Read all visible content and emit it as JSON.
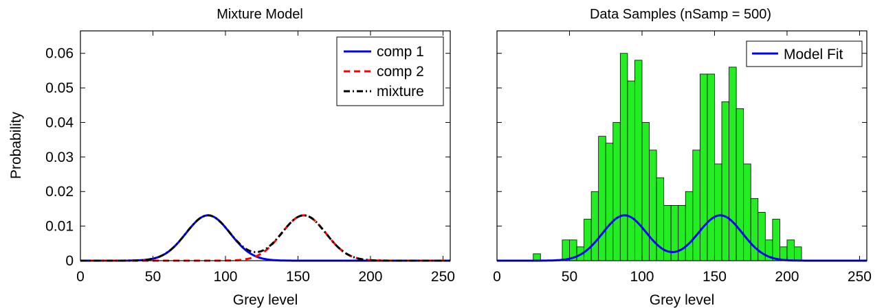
{
  "chart_data": [
    {
      "type": "line",
      "title": "Mixture Model",
      "xlabel": "Grey level",
      "ylabel": "Probability",
      "xlim": [
        0,
        255
      ],
      "ylim": [
        0,
        0.0665
      ],
      "xticks": [
        0,
        50,
        100,
        150,
        200,
        250
      ],
      "yticks": [
        0,
        0.01,
        0.02,
        0.03,
        0.04,
        0.05,
        0.06
      ],
      "ytick_labels": [
        "0",
        "0.01",
        "0.02",
        "0.03",
        "0.04",
        "0.05",
        "0.06"
      ],
      "legend": "top-right",
      "grid": false,
      "series": [
        {
          "name": "comp 1",
          "color": "#0000ff",
          "style": "solid",
          "component": {
            "weight": 1,
            "mean": 88,
            "sd": 15.2
          }
        },
        {
          "name": "comp 2",
          "color": "#ff0000",
          "style": "dashed",
          "component": {
            "weight": 1,
            "mean": 154,
            "sd": 15.2
          }
        },
        {
          "name": "mixture",
          "color": "#000000",
          "style": "dashdot",
          "mixture_of": [
            0,
            1
          ]
        }
      ]
    },
    {
      "type": "bar",
      "title": "Data Samples  (nSamp = 500)",
      "xlabel": "Grey level",
      "ylabel": "",
      "xlim": [
        0,
        255
      ],
      "ylim": [
        0,
        0.0665
      ],
      "xticks": [
        0,
        50,
        100,
        150,
        200,
        250
      ],
      "legend": "top-right",
      "grid": false,
      "histogram": {
        "color": "#22ee22",
        "bins": [
          {
            "x0": 25,
            "x1": 30,
            "y": 0.002
          },
          {
            "x0": 45,
            "x1": 50,
            "y": 0.006
          },
          {
            "x0": 50,
            "x1": 55,
            "y": 0.006
          },
          {
            "x0": 55,
            "x1": 60,
            "y": 0.004
          },
          {
            "x0": 60,
            "x1": 65,
            "y": 0.012
          },
          {
            "x0": 65,
            "x1": 70,
            "y": 0.02
          },
          {
            "x0": 70,
            "x1": 75,
            "y": 0.036
          },
          {
            "x0": 75,
            "x1": 80,
            "y": 0.034
          },
          {
            "x0": 80,
            "x1": 85,
            "y": 0.04
          },
          {
            "x0": 85,
            "x1": 90,
            "y": 0.06
          },
          {
            "x0": 90,
            "x1": 95,
            "y": 0.052
          },
          {
            "x0": 95,
            "x1": 100,
            "y": 0.058
          },
          {
            "x0": 100,
            "x1": 105,
            "y": 0.04
          },
          {
            "x0": 105,
            "x1": 110,
            "y": 0.032
          },
          {
            "x0": 110,
            "x1": 115,
            "y": 0.024
          },
          {
            "x0": 115,
            "x1": 120,
            "y": 0.016
          },
          {
            "x0": 120,
            "x1": 125,
            "y": 0.016
          },
          {
            "x0": 125,
            "x1": 130,
            "y": 0.016
          },
          {
            "x0": 130,
            "x1": 135,
            "y": 0.02
          },
          {
            "x0": 135,
            "x1": 140,
            "y": 0.032
          },
          {
            "x0": 140,
            "x1": 145,
            "y": 0.054
          },
          {
            "x0": 145,
            "x1": 150,
            "y": 0.054
          },
          {
            "x0": 150,
            "x1": 155,
            "y": 0.028
          },
          {
            "x0": 155,
            "x1": 160,
            "y": 0.046
          },
          {
            "x0": 160,
            "x1": 165,
            "y": 0.056
          },
          {
            "x0": 165,
            "x1": 170,
            "y": 0.044
          },
          {
            "x0": 170,
            "x1": 175,
            "y": 0.028
          },
          {
            "x0": 175,
            "x1": 180,
            "y": 0.018
          },
          {
            "x0": 180,
            "x1": 185,
            "y": 0.014
          },
          {
            "x0": 185,
            "x1": 190,
            "y": 0.006
          },
          {
            "x0": 190,
            "x1": 195,
            "y": 0.012
          },
          {
            "x0": 195,
            "x1": 200,
            "y": 0.004
          },
          {
            "x0": 200,
            "x1": 205,
            "y": 0.006
          },
          {
            "x0": 205,
            "x1": 210,
            "y": 0.004
          }
        ]
      },
      "series": [
        {
          "name": "Model Fit",
          "color": "#0000ff",
          "style": "solid",
          "mixture_of_components": [
            {
              "weight": 1,
              "mean": 88,
              "sd": 15.2
            },
            {
              "weight": 1,
              "mean": 154,
              "sd": 15.2
            }
          ]
        }
      ]
    }
  ]
}
